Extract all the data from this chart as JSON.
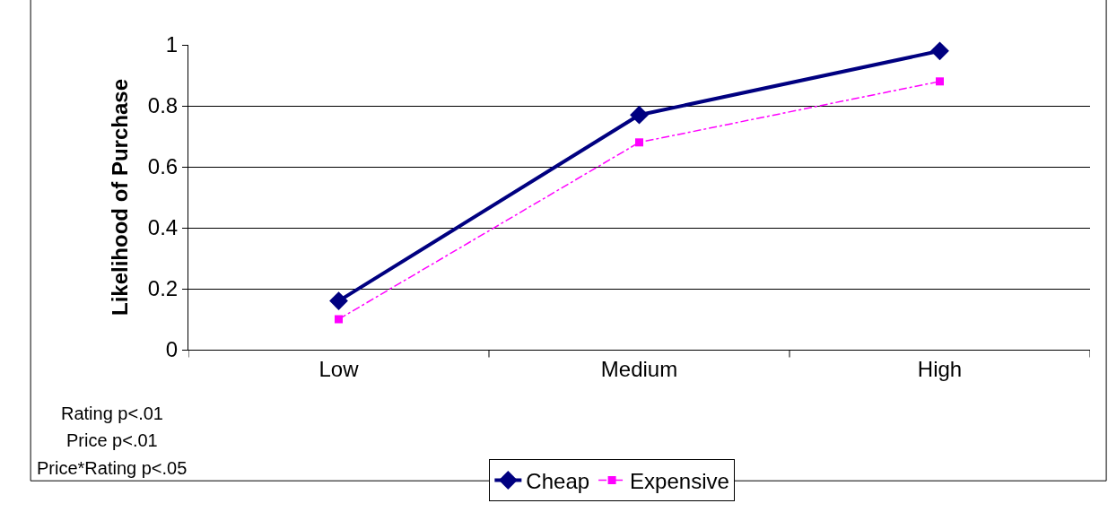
{
  "chart_data": {
    "type": "line",
    "ylabel": "Likelihood of Purchase",
    "categories": [
      "Low",
      "Medium",
      "High"
    ],
    "series": [
      {
        "name": "Cheap",
        "color": "#000080",
        "values": [
          0.16,
          0.77,
          0.98
        ],
        "marker": "diamond",
        "line_style": "solid"
      },
      {
        "name": "Expensive",
        "color": "#ff00ff",
        "values": [
          0.1,
          0.68,
          0.88
        ],
        "marker": "square",
        "line_style": "dashdot"
      }
    ],
    "ylim": [
      0,
      1
    ],
    "yticks": [
      0,
      0.2,
      0.4,
      0.6,
      0.8,
      1
    ],
    "grid": "y",
    "legend": "bottom",
    "annotations": [
      "Rating p<.01",
      "Price p<.01",
      "Price*Rating p<.05"
    ]
  }
}
